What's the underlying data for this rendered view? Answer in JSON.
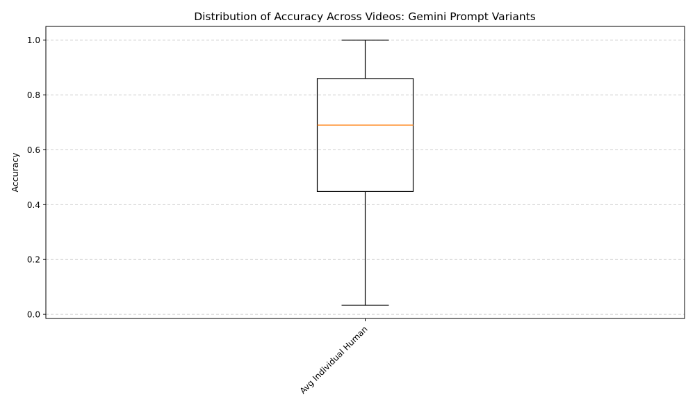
{
  "chart_data": {
    "type": "box",
    "title": "Distribution of Accuracy Across Videos: Gemini Prompt Variants",
    "xlabel": "",
    "ylabel": "Accuracy",
    "categories": [
      "Avg Individual Human"
    ],
    "boxes": [
      {
        "category": "Avg Individual Human",
        "whisker_low": 0.033,
        "q1": 0.448,
        "median": 0.69,
        "q3": 0.86,
        "whisker_high": 1.0
      }
    ],
    "ylim": [
      -0.015,
      1.05
    ],
    "yticks": [
      0.0,
      0.2,
      0.4,
      0.6,
      0.8,
      1.0
    ],
    "ytick_labels": [
      "0.0",
      "0.2",
      "0.4",
      "0.6",
      "0.8",
      "1.0"
    ],
    "grid": {
      "axis": "y",
      "style": "dashed"
    },
    "colors": {
      "box": "#000000",
      "median": "#ff7f0e",
      "grid": "#cccccc"
    },
    "xtick_rotation_deg": 45
  }
}
